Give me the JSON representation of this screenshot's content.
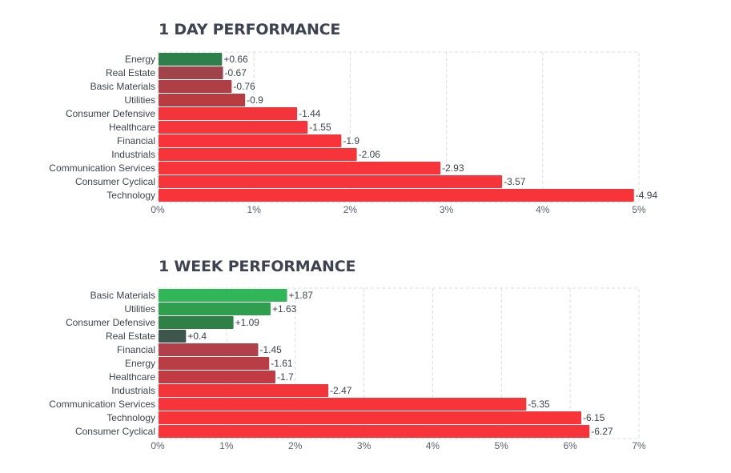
{
  "chart_data": [
    {
      "type": "bar",
      "orientation": "horizontal",
      "title": "1 DAY PERFORMANCE",
      "xlim": [
        0,
        5
      ],
      "ticks": [
        "0%",
        "1%",
        "2%",
        "3%",
        "4%",
        "5%"
      ],
      "grid": true,
      "categories": [
        "Energy",
        "Real Estate",
        "Basic Materials",
        "Utilities",
        "Consumer Defensive",
        "Healthcare",
        "Financial",
        "Industrials",
        "Communication Services",
        "Consumer Cyclical",
        "Technology"
      ],
      "values": [
        0.66,
        -0.67,
        -0.76,
        -0.9,
        -1.44,
        -1.55,
        -1.9,
        -2.06,
        -2.93,
        -3.57,
        -4.94
      ],
      "value_labels": [
        "+0.66",
        "-0.67",
        "-0.76",
        "-0.9",
        "-1.44",
        "-1.55",
        "-1.9",
        "-2.06",
        "-2.93",
        "-3.57",
        "-4.94"
      ],
      "colors": [
        "#2f7f4c",
        "#a0434a",
        "#ad3f45",
        "#b93c43",
        "#f2353b",
        "#f5353b",
        "#f7343a",
        "#f7343a",
        "#f7343a",
        "#f7343a",
        "#f7343a"
      ]
    },
    {
      "type": "bar",
      "orientation": "horizontal",
      "title": "1 WEEK PERFORMANCE",
      "xlim": [
        0,
        7
      ],
      "ticks": [
        "0%",
        "1%",
        "2%",
        "3%",
        "4%",
        "5%",
        "6%",
        "7%"
      ],
      "grid": true,
      "categories": [
        "Basic Materials",
        "Utilities",
        "Consumer Defensive",
        "Real Estate",
        "Financial",
        "Energy",
        "Healthcare",
        "Industrials",
        "Communication Services",
        "Technology",
        "Consumer Cyclical"
      ],
      "values": [
        1.87,
        1.63,
        1.09,
        0.4,
        -1.45,
        -1.61,
        -1.7,
        -2.47,
        -5.35,
        -6.15,
        -6.27
      ],
      "value_labels": [
        "+1.87",
        "+1.63",
        "+1.09",
        "+0.4",
        "-1.45",
        "-1.61",
        "-1.7",
        "-2.47",
        "-5.35",
        "-6.15",
        "-6.27"
      ],
      "colors": [
        "#30b557",
        "#2f9e4f",
        "#2f8047",
        "#3e574c",
        "#b1404a",
        "#b93d45",
        "#c23a42",
        "#f2353b",
        "#f7343a",
        "#f7343a",
        "#f7343a"
      ]
    }
  ]
}
